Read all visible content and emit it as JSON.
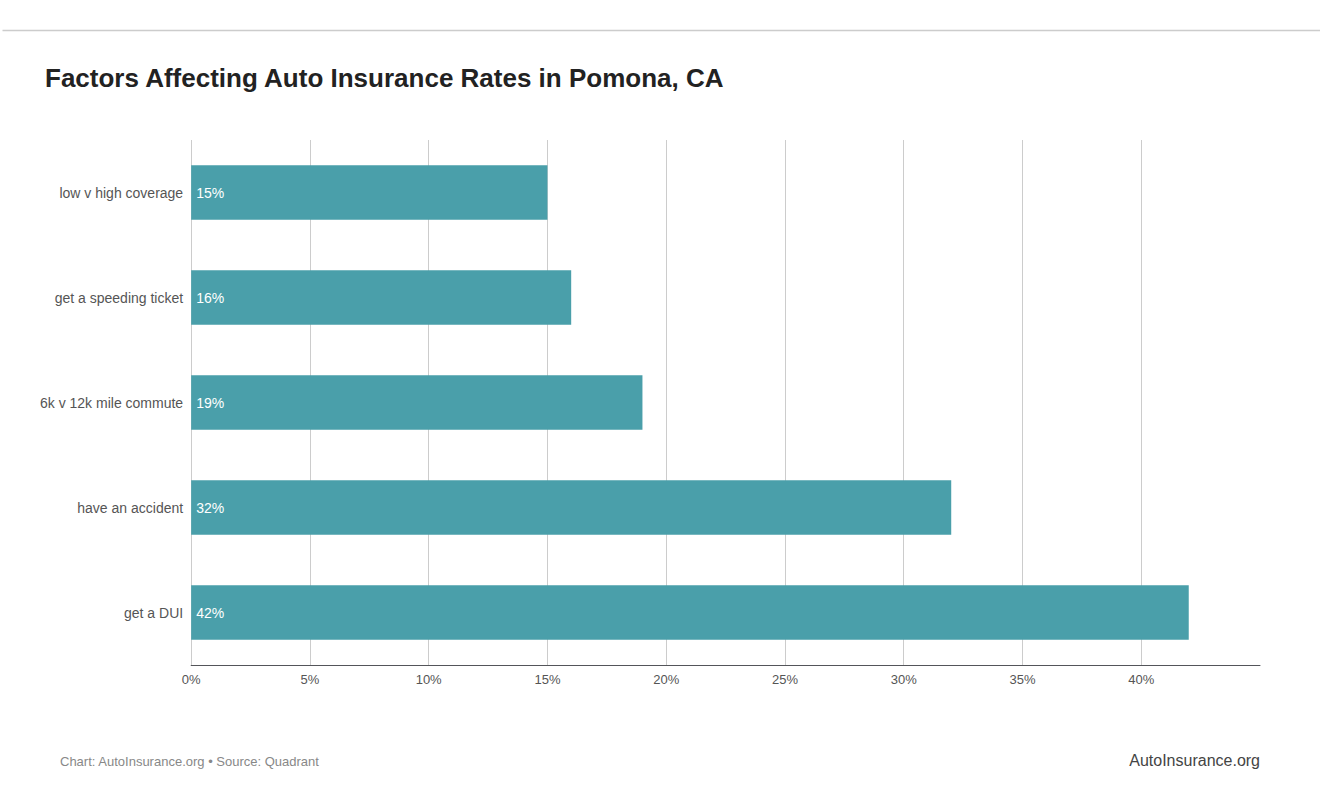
{
  "chart_data": {
    "type": "bar",
    "orientation": "horizontal",
    "title": "Factors Affecting Auto Insurance Rates in Pomona, CA",
    "categories": [
      "get a DUI",
      "have an accident",
      "6k v 12k mile commute",
      "get a speeding ticket",
      "low v high coverage"
    ],
    "values": [
      42,
      32,
      19,
      16,
      15
    ],
    "value_labels": [
      "42%",
      "32%",
      "19%",
      "16%",
      "15%"
    ],
    "data_labels": true,
    "color": "#4a9faa",
    "xlim": [
      0,
      45
    ],
    "xticks": [
      {
        "value": 0,
        "label": "0%"
      },
      {
        "value": 5,
        "label": "5%"
      },
      {
        "value": 10,
        "label": "10%"
      },
      {
        "value": 15,
        "label": "15%"
      },
      {
        "value": 20,
        "label": "20%"
      },
      {
        "value": 25,
        "label": "25%"
      },
      {
        "value": 30,
        "label": "30%"
      },
      {
        "value": 35,
        "label": "35%"
      },
      {
        "value": 40,
        "label": "40%"
      }
    ],
    "grid": true,
    "annotations": [
      "Chart: AutoInsurance.org • Source: Quadrant",
      "AutoInsurance.org"
    ]
  }
}
